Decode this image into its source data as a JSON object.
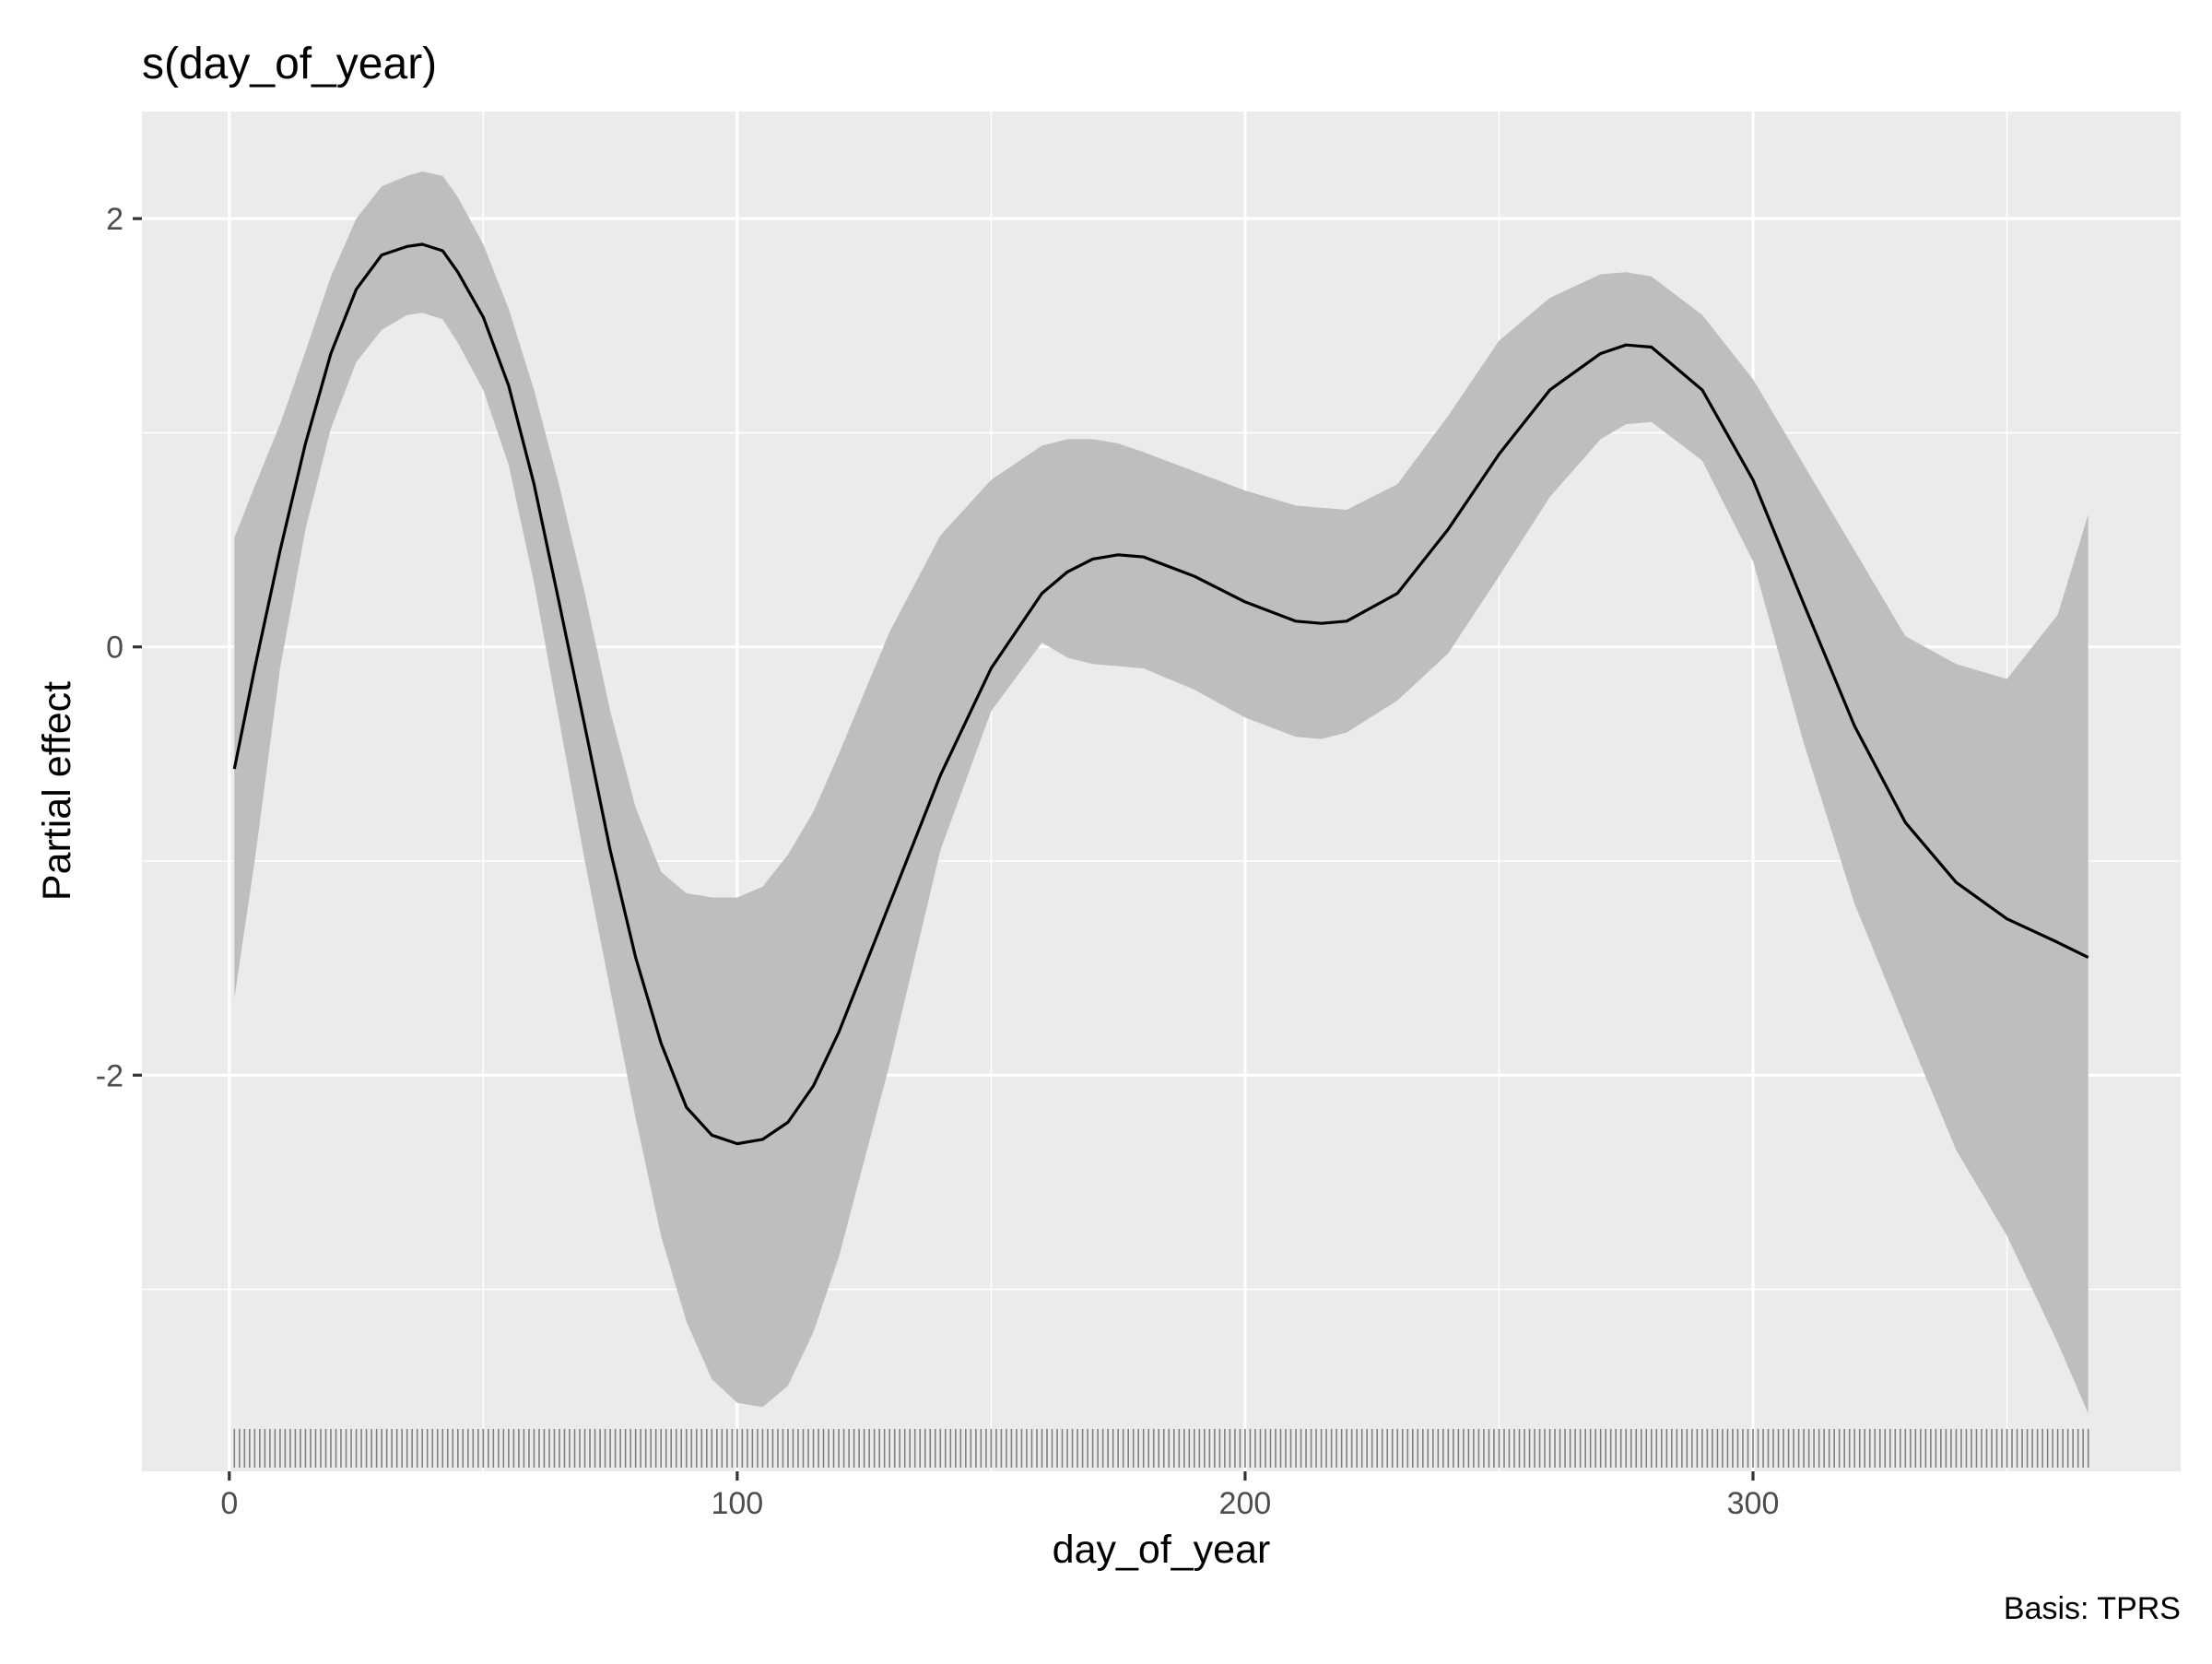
{
  "chart_data": {
    "type": "line",
    "title": "s(day_of_year)",
    "xlabel": "day_of_year",
    "ylabel": "Partial effect",
    "caption": "Basis: TPRS",
    "xlim": [
      -17.2,
      384.2
    ],
    "ylim": [
      -3.85,
      2.5
    ],
    "x_ticks": [
      0,
      100,
      200,
      300
    ],
    "x_tick_labels": [
      "0",
      "100",
      "200",
      "300"
    ],
    "y_ticks": [
      -2,
      0,
      2
    ],
    "y_tick_labels": [
      "-2",
      "0",
      "2"
    ],
    "x_minor_breaks": [
      50,
      150,
      250,
      350
    ],
    "y_minor_breaks": [
      -3,
      -1,
      1
    ],
    "grid": true,
    "legend": "none",
    "colors": {
      "panel_background": "#ebebeb",
      "grid": "#ffffff",
      "ribbon": "#bebebe",
      "line": "#000000",
      "rug": "#808080"
    },
    "series": [
      {
        "x": [
          1,
          5,
          10,
          15,
          20,
          25,
          30,
          35,
          38,
          42,
          45,
          50,
          55,
          60,
          65,
          70,
          75,
          80,
          85,
          90,
          95,
          100,
          105,
          110,
          115,
          120,
          130,
          140,
          150,
          160,
          165,
          170,
          175,
          180,
          190,
          200,
          210,
          215,
          220,
          230,
          240,
          250,
          260,
          270,
          275,
          280,
          290,
          300,
          310,
          320,
          330,
          340,
          350,
          360,
          366
        ],
        "y": [
          -0.57,
          -0.1,
          0.45,
          0.95,
          1.37,
          1.67,
          1.83,
          1.87,
          1.88,
          1.85,
          1.75,
          1.54,
          1.22,
          0.76,
          0.2,
          -0.37,
          -0.95,
          -1.45,
          -1.85,
          -2.15,
          -2.28,
          -2.32,
          -2.3,
          -2.22,
          -2.05,
          -1.8,
          -1.2,
          -0.6,
          -0.1,
          0.25,
          0.35,
          0.41,
          0.43,
          0.42,
          0.33,
          0.21,
          0.12,
          0.11,
          0.12,
          0.25,
          0.55,
          0.9,
          1.2,
          1.37,
          1.41,
          1.4,
          1.2,
          0.78,
          0.2,
          -0.37,
          -0.82,
          -1.1,
          -1.27,
          -1.38,
          -1.45
        ],
        "lower": [
          -1.64,
          -1.0,
          -0.1,
          0.55,
          1.02,
          1.33,
          1.48,
          1.55,
          1.56,
          1.53,
          1.42,
          1.2,
          0.85,
          0.3,
          -0.35,
          -1.0,
          -1.6,
          -2.2,
          -2.75,
          -3.15,
          -3.42,
          -3.53,
          -3.55,
          -3.45,
          -3.2,
          -2.85,
          -1.95,
          -0.95,
          -0.3,
          0.02,
          -0.05,
          -0.08,
          -0.09,
          -0.1,
          -0.2,
          -0.33,
          -0.42,
          -0.43,
          -0.4,
          -0.25,
          -0.03,
          0.33,
          0.7,
          0.97,
          1.04,
          1.05,
          0.87,
          0.4,
          -0.45,
          -1.2,
          -1.78,
          -2.35,
          -2.75,
          -3.25,
          -3.58
        ],
        "upper": [
          0.51,
          0.75,
          1.04,
          1.38,
          1.73,
          2.0,
          2.15,
          2.2,
          2.22,
          2.2,
          2.1,
          1.88,
          1.58,
          1.2,
          0.75,
          0.25,
          -0.3,
          -0.75,
          -1.05,
          -1.15,
          -1.17,
          -1.17,
          -1.12,
          -0.97,
          -0.77,
          -0.5,
          0.07,
          0.52,
          0.78,
          0.94,
          0.97,
          0.97,
          0.95,
          0.91,
          0.82,
          0.73,
          0.66,
          0.65,
          0.64,
          0.76,
          1.08,
          1.43,
          1.63,
          1.74,
          1.75,
          1.73,
          1.55,
          1.25,
          0.85,
          0.45,
          0.05,
          -0.08,
          -0.15,
          0.15,
          0.62
        ]
      }
    ]
  }
}
